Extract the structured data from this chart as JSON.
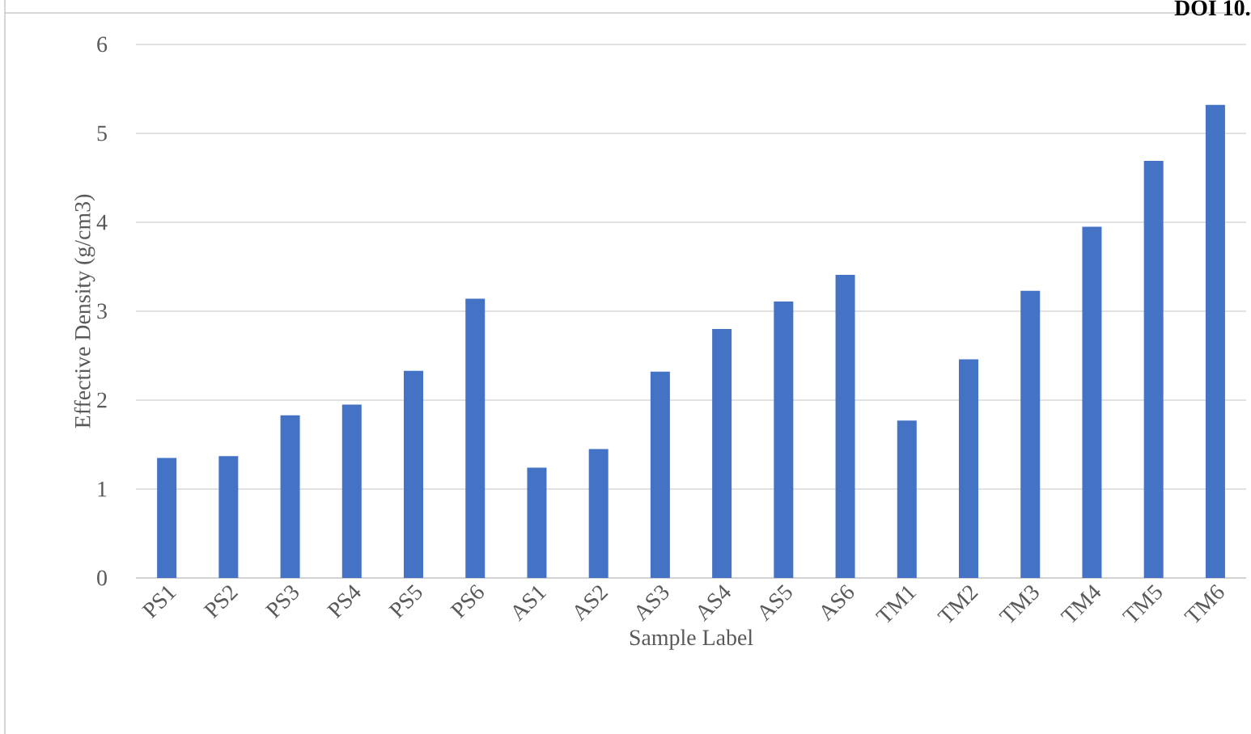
{
  "chart_data": {
    "type": "bar",
    "xlabel": "Sample Label",
    "ylabel": "Effective Density (g/cm3)",
    "annotations": [
      "DOI 10."
    ],
    "categories": [
      "PS1",
      "PS2",
      "PS3",
      "PS4",
      "PS5",
      "PS6",
      "AS1",
      "AS2",
      "AS3",
      "AS4",
      "AS5",
      "AS6",
      "TM1",
      "TM2",
      "TM3",
      "TM4",
      "TM5",
      "TM6"
    ],
    "values": [
      1.35,
      1.37,
      1.83,
      1.95,
      2.33,
      3.14,
      1.24,
      1.45,
      2.32,
      2.8,
      3.11,
      3.41,
      1.77,
      2.46,
      3.23,
      3.95,
      4.69,
      5.32
    ],
    "color": "#4472c4",
    "ylim": [
      0,
      6
    ],
    "yticks": [
      0,
      1,
      2,
      3,
      4,
      5,
      6
    ],
    "grid": "y"
  }
}
